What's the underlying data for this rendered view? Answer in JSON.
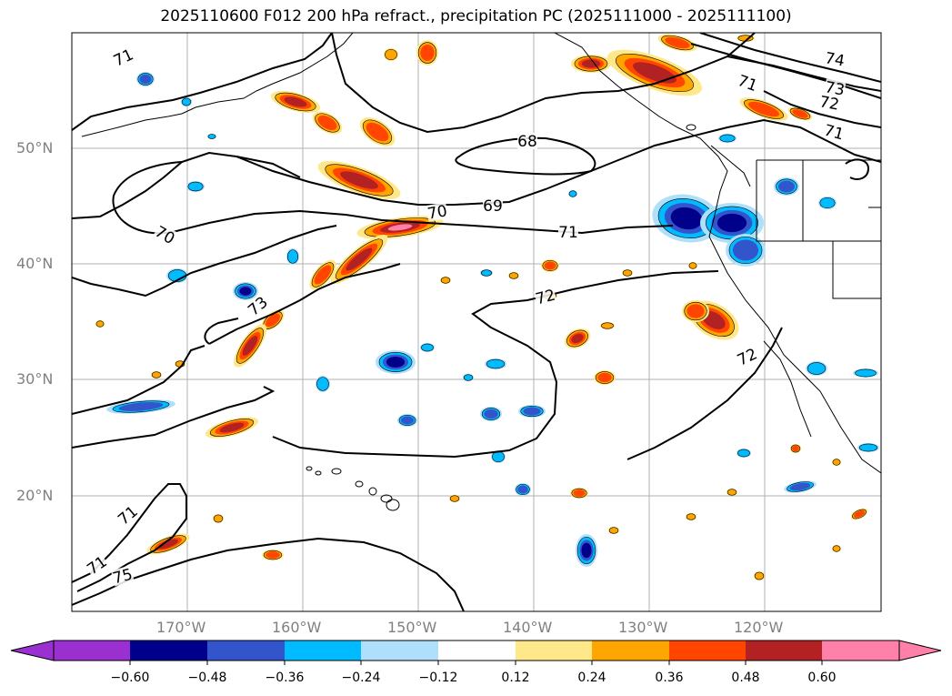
{
  "title": "2025110600 F012 200 hPa refract., precipitation PC (2025111000 - 2025111100)",
  "lat_labels": [
    "50°N",
    "40°N",
    "30°N",
    "20°N"
  ],
  "lon_labels": [
    "170°W",
    "160°W",
    "150°W",
    "140°W",
    "130°W",
    "120°W"
  ],
  "contour_labels": [
    "71",
    "68",
    "69",
    "70",
    "70",
    "71",
    "72",
    "73",
    "71",
    "71",
    "71",
    "75",
    "74",
    "73",
    "72",
    "71",
    "72"
  ],
  "colorbar": {
    "ticks": [
      "−0.60",
      "−0.48",
      "−0.36",
      "−0.24",
      "−0.12",
      "0.12",
      "0.24",
      "0.36",
      "0.48",
      "0.60"
    ],
    "colors": [
      "#9b30d0",
      "#00008b",
      "#3355cc",
      "#00bbff",
      "#aee0fb",
      "#ffffff",
      "#ffe88a",
      "#ffa500",
      "#ff4500",
      "#b22222",
      "#ff80a8"
    ]
  },
  "chart_data": {
    "type": "heatmap",
    "title": "2025110600 F012 200 hPa refract., precipitation PC (2025111000 - 2025111100)",
    "field": "200 hPa refractivity contours with precipitation PC shading",
    "lon_range": [
      "180°W",
      "110°W"
    ],
    "lat_range": [
      "10°N",
      "60°N"
    ],
    "contour_levels": [
      68,
      69,
      70,
      71,
      72,
      73,
      74,
      75
    ],
    "color_levels": [
      -0.6,
      -0.48,
      -0.36,
      -0.24,
      -0.12,
      0.12,
      0.24,
      0.36,
      0.48,
      0.6
    ]
  }
}
